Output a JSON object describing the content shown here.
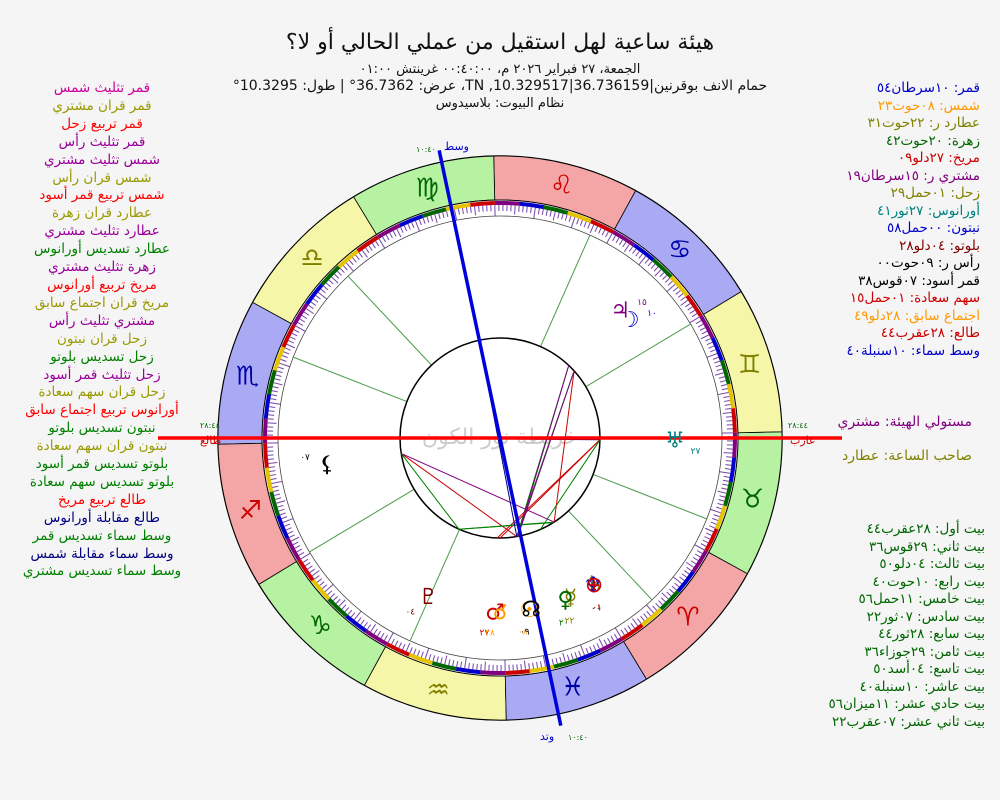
{
  "header": {
    "title": "هيئة ساعية لهل استقيل من عملي الحالي أو لا؟",
    "line1": "الجمعة، ٢٧ فبراير ٢٠٢٦ م، ٠٠:٤٠:٠٠ غرينتش ٠١:٠٠",
    "line2": "حمام الانف بوقرنين|36.736159|10.329517, TN، عرض: 36.7362° | طول: 10.3295°",
    "line3": "نظام البيوت: بلاسيدوس"
  },
  "aspects": [
    {
      "text": "قمر تثليث شمس",
      "color": "#cc0099"
    },
    {
      "text": "قمر قران مشتري",
      "color": "#999900"
    },
    {
      "text": "قمر تربيع زحل",
      "color": "#ff0000"
    },
    {
      "text": "قمر تثليث رأس",
      "color": "#990099"
    },
    {
      "text": "شمس تثليث مشتري",
      "color": "#990099"
    },
    {
      "text": "شمس قران رأس",
      "color": "#999900"
    },
    {
      "text": "شمس تربيع قمر أسود",
      "color": "#ff0000"
    },
    {
      "text": "عطارد قران زهرة",
      "color": "#999900"
    },
    {
      "text": "عطارد تثليث مشتري",
      "color": "#990099"
    },
    {
      "text": "عطارد تسديس أورانوس",
      "color": "#008000"
    },
    {
      "text": "زهرة تثليث مشتري",
      "color": "#990099"
    },
    {
      "text": "مريخ تربيع أورانوس",
      "color": "#ff0000"
    },
    {
      "text": "مريخ قران اجتماع سابق",
      "color": "#999900"
    },
    {
      "text": "مشتري تثليث رأس",
      "color": "#990099"
    },
    {
      "text": "زحل قران نبتون",
      "color": "#999900"
    },
    {
      "text": "زحل تسديس بلوتو",
      "color": "#008000"
    },
    {
      "text": "زحل تثليث قمر أسود",
      "color": "#990099"
    },
    {
      "text": "زحل قران سهم سعادة",
      "color": "#999900"
    },
    {
      "text": "أورانوس تربيع اجتماع سابق",
      "color": "#ff0000"
    },
    {
      "text": "نبتون تسديس بلوتو",
      "color": "#008000"
    },
    {
      "text": "نبتون قران سهم سعادة",
      "color": "#999900"
    },
    {
      "text": "بلوتو تسديس قمر أسود",
      "color": "#008000"
    },
    {
      "text": "بلوتو تسديس سهم سعادة",
      "color": "#008000"
    },
    {
      "text": "طالع تربيع مريخ",
      "color": "#ff0000"
    },
    {
      "text": "طالع مقابلة أورانوس",
      "color": "#000080"
    },
    {
      "text": "وسط سماء تسديس قمر",
      "color": "#008000"
    },
    {
      "text": "وسط سماء مقابلة شمس",
      "color": "#000080"
    },
    {
      "text": "وسط سماء تسديس مشتري",
      "color": "#008000"
    }
  ],
  "positions": [
    {
      "text": "قمر: ١٠سرطان٥٤",
      "color": "#0000cc"
    },
    {
      "text": "شمس: ٠٨حوت٢٣",
      "color": "#ff9900"
    },
    {
      "text": "عطارد ر: ٢٢حوت٣١",
      "color": "#808000"
    },
    {
      "text": "زهرة: ٢٠حوت٤٢",
      "color": "#006600"
    },
    {
      "text": "مريخ: ٢٧دلو٠٩",
      "color": "#cc0000"
    },
    {
      "text": "مشتري ر: ١٥سرطان١٩",
      "color": "#800080"
    },
    {
      "text": "زحل: ٠١حمل٢٩",
      "color": "#808000"
    },
    {
      "text": "أورانوس: ٢٧ثور٤١",
      "color": "#008080"
    },
    {
      "text": "نبتون: ٠٠حمل٥٨",
      "color": "#0000cc"
    },
    {
      "text": "بلوتو: ٠٤دلو٢٨",
      "color": "#800000"
    },
    {
      "text": "رأس ر: ٠٩حوت٠٠",
      "color": "#000000"
    },
    {
      "text": "قمر أسود: ٠٧قوس٣٨",
      "color": "#000000"
    },
    {
      "text": "سهم سعادة: ٠١حمل١٥",
      "color": "#cc0000"
    },
    {
      "text": "اجتماع سابق: ٢٨دلو٤٩",
      "color": "#ff9900"
    },
    {
      "text": "طالع: ٢٨عقرب٤٤",
      "color": "#cc0000"
    },
    {
      "text": "وسط سماء: ١٠سنبلة٤٠",
      "color": "#0000cc"
    }
  ],
  "lords": [
    {
      "text": "مستولي الهيئة: مشتري",
      "color": "#800080"
    },
    {
      "text": "صاحب الساعة: عطارد",
      "color": "#808000"
    }
  ],
  "houses": [
    {
      "text": "بيت أول: ٢٨عقرب٤٤",
      "color": "#006600"
    },
    {
      "text": "بيت ثاني: ٢٩قوس٣٦",
      "color": "#006600"
    },
    {
      "text": "بيت ثالث: ٠٤دلو٥٠",
      "color": "#006600"
    },
    {
      "text": "بيت رابع: ١٠حوت٤٠",
      "color": "#006600"
    },
    {
      "text": "بيت خامس: ١١حمل٥٦",
      "color": "#006600"
    },
    {
      "text": "بيت سادس: ٠٧ثور٢٢",
      "color": "#006600"
    },
    {
      "text": "بيت سابع: ٢٨ثور٤٤",
      "color": "#006600"
    },
    {
      "text": "بيت ثامن: ٢٩جوزاء٣٦",
      "color": "#006600"
    },
    {
      "text": "بيت تاسع: ٠٤أسد٥٠",
      "color": "#006600"
    },
    {
      "text": "بيت عاشر: ١٠سنبلة٤٠",
      "color": "#006600"
    },
    {
      "text": "بيت حادي عشر: ١١ميزان٥٦",
      "color": "#006600"
    },
    {
      "text": "بيت ثاني عشر: ٠٧عقرب٢٢",
      "color": "#006600"
    }
  ],
  "wheel": {
    "watermark": "خريطة نور الكون",
    "asc_label": "طالع",
    "dsc_label": "غارب",
    "mc_label": "وسط",
    "ic_label": "وتد",
    "asc_time": "٢٨:٤٤",
    "dsc_time": "٢٨:٤٤",
    "mc_time": "١٠:٤٠",
    "ic_time": "١٠:٤٠",
    "asc_lon": 238.73,
    "mc_lon": 160.67,
    "house_cusps": [
      238.73,
      269.6,
      304.83,
      340.67,
      11.93,
      37.37,
      58.73,
      89.6,
      124.83,
      160.67,
      191.93,
      217.37
    ],
    "signs": [
      {
        "glyph": "♈",
        "name": "Aries",
        "fill": "#f4a6a6"
      },
      {
        "glyph": "♉",
        "name": "Taurus",
        "fill": "#b6f2a2"
      },
      {
        "glyph": "♊",
        "name": "Gemini",
        "fill": "#f6f6a8"
      },
      {
        "glyph": "♋",
        "name": "Cancer",
        "fill": "#aaaaf4"
      },
      {
        "glyph": "♌",
        "name": "Leo",
        "fill": "#f4a6a6"
      },
      {
        "glyph": "♍",
        "name": "Virgo",
        "fill": "#b6f2a2"
      },
      {
        "glyph": "♎",
        "name": "Libra",
        "fill": "#f6f6a8"
      },
      {
        "glyph": "♏",
        "name": "Scorpio",
        "fill": "#aaaaf4"
      },
      {
        "glyph": "♐",
        "name": "Sagittarius",
        "fill": "#f4a6a6"
      },
      {
        "glyph": "♑",
        "name": "Capricorn",
        "fill": "#b6f2a2"
      },
      {
        "glyph": "♒",
        "name": "Aquarius",
        "fill": "#f6f6a8"
      },
      {
        "glyph": "♓",
        "name": "Pisces",
        "fill": "#aaaaf4"
      }
    ],
    "planets": [
      {
        "name": "moon",
        "glyph": "☽",
        "lon": 100.9,
        "deg": "١٠",
        "color": "#0000cc"
      },
      {
        "name": "jupiter",
        "glyph": "♃",
        "lon": 105.3,
        "deg": "١٥",
        "color": "#800080"
      },
      {
        "name": "sun",
        "glyph": "☉",
        "lon": 338.4,
        "deg": "٠٨",
        "color": "#ff9900"
      },
      {
        "name": "mercury",
        "glyph": "☿",
        "lon": 352.5,
        "deg": "٢٢",
        "color": "#808000"
      },
      {
        "name": "venus",
        "glyph": "♀",
        "lon": 350.7,
        "deg": "٢٠",
        "color": "#006600"
      },
      {
        "name": "mars",
        "glyph": "♂",
        "lon": 327.15,
        "deg": "٢٧",
        "color": "#cc0000"
      },
      {
        "name": "saturn",
        "glyph": "♄",
        "lon": 1.5,
        "deg": "٠١",
        "color": "#808000"
      },
      {
        "name": "uranus",
        "glyph": "♅",
        "lon": 57.7,
        "deg": "٢٧",
        "color": "#008080"
      },
      {
        "name": "neptune",
        "glyph": "♆",
        "lon": 0.97,
        "deg": "٠٠",
        "color": "#0000cc"
      },
      {
        "name": "pluto",
        "glyph": "♇",
        "lon": 304.5,
        "deg": "٠٤",
        "color": "#800000"
      },
      {
        "name": "node",
        "glyph": "☊",
        "lon": 339.0,
        "deg": "٠٩",
        "color": "#000000"
      },
      {
        "name": "lilith",
        "glyph": "⚸",
        "lon": 247.6,
        "deg": "٠٧",
        "color": "#000000"
      },
      {
        "name": "fortune",
        "glyph": "⊕",
        "lon": 1.25,
        "deg": "٠١",
        "color": "#cc0000"
      },
      {
        "name": "prenatal",
        "glyph": "☌",
        "lon": 328.8,
        "deg": "٢٨",
        "color": "#ff9900"
      }
    ]
  }
}
